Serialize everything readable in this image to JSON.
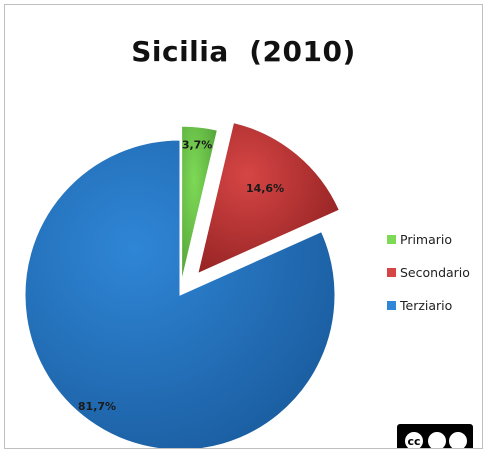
{
  "chart_data": {
    "type": "pie",
    "title": "Sicilia  (2010)",
    "exploded": true,
    "slices": [
      {
        "name": "Primario",
        "value": 3.7,
        "label": "3,7%",
        "color": "#7ed957",
        "dark": "#4f9e34"
      },
      {
        "name": "Secondario",
        "value": 14.6,
        "label": "14,6%",
        "color": "#d64545",
        "dark": "#8f2020"
      },
      {
        "name": "Terziario",
        "value": 81.7,
        "label": "81,7%",
        "color": "#2f86d6",
        "dark": "#195a9c"
      }
    ],
    "legend_position": "right"
  },
  "badge": {
    "name": "cc-by-nc-nd"
  }
}
